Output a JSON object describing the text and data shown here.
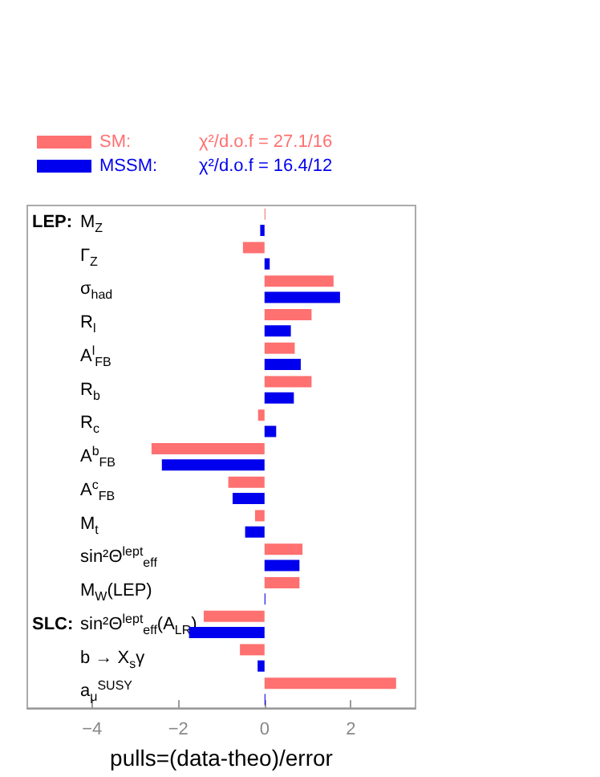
{
  "chart_data": {
    "type": "bar",
    "orientation": "horizontal",
    "xlabel": "pulls=(data-theo)/error",
    "categories": [
      "LEP: M$_{Z}$",
      "Γ$_{Z}$",
      "σ$_{had}$",
      "R$_{l}$",
      "A$^{l}$$_{FB}$",
      "R$_{b}$",
      "R$_{c}$",
      "A$^{b}$$_{FB}$",
      "A$^{c}$$_{FB}$",
      "M$_{t}$",
      "sin²Θ$^{lept}$$_{eff}$",
      "M$_{W}$(LEP)",
      "SLC: sin²Θ$^{lept}$$_{eff}$(A$_{LR}$)",
      "b → X$_{s}$γ",
      "a$_{μ}$$^{SUSY}$"
    ],
    "series": [
      {
        "name": "SM:",
        "color": "#ff7070",
        "values": [
          0.02,
          -0.5,
          1.6,
          1.09,
          0.7,
          1.09,
          -0.15,
          -2.62,
          -0.84,
          -0.22,
          0.88,
          0.81,
          -1.41,
          -0.57,
          3.05
        ]
      },
      {
        "name": "MSSM:",
        "color": "#0000ee",
        "values": [
          -0.1,
          0.12,
          1.75,
          0.61,
          0.84,
          0.68,
          0.27,
          -2.38,
          -0.74,
          -0.45,
          0.81,
          0.02,
          -1.75,
          -0.16,
          0.02
        ]
      }
    ],
    "xlim": [
      -5.5,
      3.5
    ],
    "xticks": [
      -4,
      -2,
      0,
      2
    ],
    "grid": false,
    "legend": "top left",
    "annotations": [
      "χ²/d.o.f = 27.1/16",
      "χ²/d.o.f = 16.4/12"
    ]
  }
}
